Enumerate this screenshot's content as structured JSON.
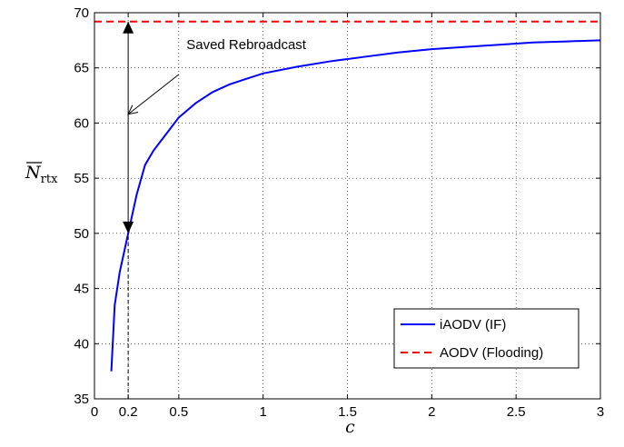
{
  "chart_data": {
    "type": "line",
    "xlabel": "c",
    "ylabel": {
      "main": "N",
      "sub": "rtx",
      "overline": true
    },
    "xlim": [
      0,
      3
    ],
    "ylim": [
      35,
      70
    ],
    "xticks": [
      0,
      0.2,
      0.5,
      1,
      1.5,
      2,
      2.5,
      3
    ],
    "xtick_labels": [
      "0",
      "0.2",
      "0.5",
      "1",
      "1.5",
      "2",
      "2.5",
      "3"
    ],
    "yticks": [
      35,
      40,
      45,
      50,
      55,
      60,
      65,
      70
    ],
    "ytick_labels": [
      "35",
      "40",
      "45",
      "50",
      "55",
      "60",
      "65",
      "70"
    ],
    "grid": true,
    "grid_style": "dotted",
    "legend_position": "bottom-right",
    "series": [
      {
        "name": "iAODV (IF)",
        "color": "#0000ff",
        "style": "solid",
        "x": [
          0.1,
          0.12,
          0.15,
          0.2,
          0.25,
          0.3,
          0.35,
          0.4,
          0.5,
          0.6,
          0.7,
          0.8,
          0.9,
          1.0,
          1.2,
          1.4,
          1.6,
          1.8,
          2.0,
          2.2,
          2.4,
          2.6,
          2.8,
          3.0
        ],
        "y": [
          37.5,
          43.5,
          46.5,
          50.0,
          53.5,
          56.2,
          57.5,
          58.5,
          60.5,
          61.8,
          62.8,
          63.5,
          64.0,
          64.5,
          65.1,
          65.6,
          66.0,
          66.4,
          66.7,
          66.9,
          67.1,
          67.3,
          67.4,
          67.5
        ]
      },
      {
        "name": "AODV (Flooding)",
        "color": "#ff0000",
        "style": "dashed",
        "x": [
          0,
          3
        ],
        "y": [
          69.2,
          69.2
        ]
      }
    ],
    "annotations": [
      {
        "text": "Saved Rebroadcast",
        "type": "label",
        "x": 0.9,
        "y": 66.7
      },
      {
        "type": "double-arrow",
        "x": 0.2,
        "y_from": 50.0,
        "y_to": 69.2
      },
      {
        "type": "arrow",
        "from": [
          0.5,
          64.4
        ],
        "to": [
          0.2,
          60.8
        ]
      },
      {
        "type": "dashed-drop",
        "x": 0.2,
        "y_from": 35,
        "y_to": 50.0
      }
    ]
  }
}
